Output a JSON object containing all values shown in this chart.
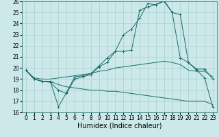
{
  "xlabel": "Humidex (Indice chaleur)",
  "xlim": [
    -0.5,
    23.5
  ],
  "ylim": [
    16,
    26
  ],
  "background_color": "#cce8e8",
  "grid_color": "#a8d0d0",
  "line_color": "#1a6b6b",
  "x": [
    0,
    1,
    2,
    3,
    4,
    5,
    6,
    7,
    8,
    9,
    10,
    11,
    12,
    13,
    14,
    15,
    16,
    17,
    18,
    19,
    20,
    21,
    22,
    23
  ],
  "line1": [
    19.8,
    19.0,
    18.8,
    18.7,
    18.0,
    17.7,
    19.0,
    19.2,
    19.4,
    20.1,
    20.5,
    21.5,
    23.0,
    23.5,
    24.5,
    25.8,
    25.7,
    26.1,
    25.0,
    24.8,
    20.5,
    19.8,
    19.1,
    16.5
  ],
  "line2": [
    19.8,
    19.0,
    18.8,
    18.8,
    16.5,
    17.8,
    19.2,
    19.3,
    19.5,
    20.2,
    20.9,
    21.5,
    21.5,
    21.6,
    25.2,
    25.5,
    25.7,
    26.0,
    25.0,
    20.9,
    20.5,
    19.9,
    19.9,
    19.0
  ],
  "line3": [
    19.8,
    19.1,
    19.0,
    19.0,
    19.1,
    19.2,
    19.3,
    19.4,
    19.5,
    19.7,
    19.8,
    20.0,
    20.1,
    20.2,
    20.3,
    20.4,
    20.5,
    20.6,
    20.5,
    20.3,
    19.8,
    19.7,
    19.7,
    19.2
  ],
  "line4": [
    19.8,
    19.0,
    18.8,
    18.8,
    18.5,
    18.3,
    18.2,
    18.1,
    18.0,
    18.0,
    17.9,
    17.9,
    17.8,
    17.7,
    17.6,
    17.5,
    17.4,
    17.3,
    17.2,
    17.1,
    17.0,
    17.0,
    17.0,
    16.7
  ],
  "xticks": [
    0,
    1,
    2,
    3,
    4,
    5,
    6,
    7,
    8,
    9,
    10,
    11,
    12,
    13,
    14,
    15,
    16,
    17,
    18,
    19,
    20,
    21,
    22,
    23
  ],
  "yticks": [
    16,
    17,
    18,
    19,
    20,
    21,
    22,
    23,
    24,
    25,
    26
  ],
  "xlabel_fontsize": 7,
  "tick_fontsize": 5.5
}
